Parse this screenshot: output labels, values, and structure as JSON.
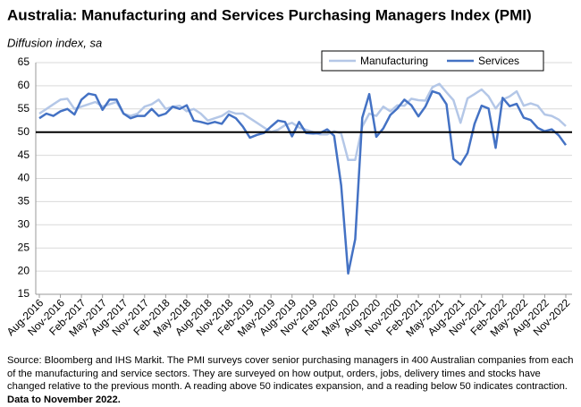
{
  "chart_data": {
    "type": "line",
    "title": "Australia:  Manufacturing and Services Purchasing Managers Index (PMI)",
    "subtitle": "Diffusion index, sa",
    "source": "Source: Bloomberg and IHS Markit.  The PMI surveys cover senior purchasing managers in 400 Australian companies from each of the manufacturing and service sectors.  They are surveyed on how output, orders, jobs, delivery times and stocks have changed relative to the previous month.  A reading above 50 indicates expansion, and a reading below 50 indicates contraction.",
    "source_bold": "Data to November 2022.",
    "categories": [
      "Aug-2016",
      null,
      null,
      "Nov-2016",
      null,
      null,
      "Feb-2017",
      null,
      null,
      "May-2017",
      null,
      null,
      "Aug-2017",
      null,
      null,
      "Nov-2017",
      null,
      null,
      "Feb-2018",
      null,
      null,
      "May-2018",
      null,
      null,
      "Aug-2018",
      null,
      null,
      "Nov-2018",
      null,
      null,
      "Feb-2019",
      null,
      null,
      "May-2019",
      null,
      null,
      "Aug-2019",
      null,
      null,
      "Nov-2019",
      null,
      null,
      "Feb-2020",
      null,
      null,
      "May-2020",
      null,
      null,
      "Aug-2020",
      null,
      null,
      "Nov-2020",
      null,
      null,
      "Feb-2021",
      null,
      null,
      "May-2021",
      null,
      null,
      "Aug-2021",
      null,
      null,
      "Nov-2021",
      null,
      null,
      "Feb-2022",
      null,
      null,
      "May-2022",
      null,
      null,
      "Aug-2022",
      null,
      null,
      "Nov-2022"
    ],
    "series": [
      {
        "name": "Manufacturing",
        "color": "#b4c7e7",
        "values": [
          54,
          55,
          56,
          57,
          57.2,
          55,
          55.5,
          56,
          56.5,
          55.5,
          56,
          56.5,
          54,
          53.5,
          54,
          55.5,
          56,
          57,
          55,
          55.5,
          55.7,
          54.5,
          55,
          54,
          52.5,
          53,
          53.5,
          54.5,
          54,
          54,
          53,
          52,
          51,
          50,
          50.5,
          51.5,
          52,
          51,
          50.5,
          50,
          49.5,
          49.5,
          50.2,
          49.7,
          44,
          44,
          51.2,
          54,
          53.5,
          55.5,
          54.5,
          55.8,
          55.7,
          57.2,
          56.9,
          56.8,
          59.7,
          60.4,
          58.6,
          56.9,
          52,
          57.3,
          58.2,
          59.2,
          57.7,
          55.1,
          57,
          57.7,
          58.8,
          55.7,
          56.2,
          55.7,
          53.8,
          53.5,
          52.7,
          51.3
        ]
      },
      {
        "name": "Services",
        "color": "#4472c4",
        "values": [
          53,
          54,
          53.5,
          54.5,
          55,
          53.8,
          57,
          58.3,
          58,
          54.8,
          57,
          57,
          54,
          53,
          53.5,
          53.5,
          55,
          53.5,
          54,
          55.5,
          55,
          55.8,
          52.5,
          52.2,
          51.8,
          52.2,
          51.8,
          53.8,
          53,
          51.2,
          48.8,
          49.4,
          49.8,
          51.2,
          52.5,
          52.2,
          49.1,
          52.2,
          49.8,
          49.7,
          49.8,
          50.6,
          49.2,
          38.5,
          19.5,
          26.9,
          53.1,
          58.2,
          49,
          50.8,
          53.7,
          55.1,
          57,
          55.8,
          53.4,
          55.5,
          58.8,
          58.3,
          56,
          44.2,
          43,
          45.5,
          51.8,
          55.7,
          55.1,
          46.6,
          57.4,
          55.6,
          56.1,
          53.1,
          52.6,
          50.9,
          50.2,
          50.6,
          49.3,
          47.2
        ]
      }
    ],
    "ylim": [
      15,
      65
    ],
    "yticks": [
      15,
      20,
      25,
      30,
      35,
      40,
      45,
      50,
      55,
      60,
      65
    ],
    "grid": true,
    "reference_line": 50,
    "legend": "top-right"
  }
}
